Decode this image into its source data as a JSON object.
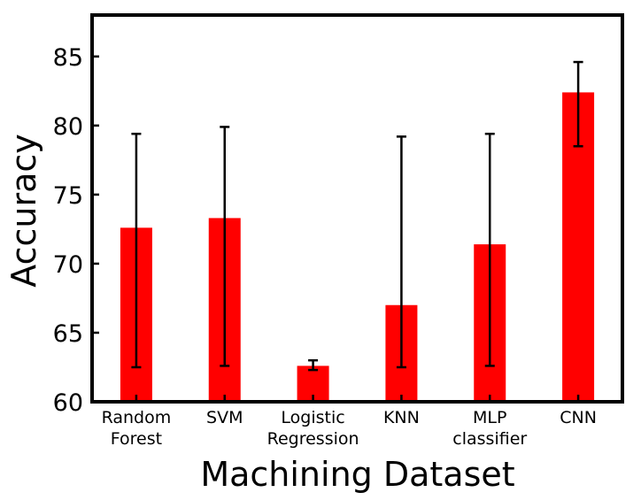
{
  "chart_data": {
    "type": "bar",
    "title": "",
    "xlabel": "Machining Dataset",
    "ylabel": "Accuracy",
    "categories": [
      [
        "Random",
        "Forest"
      ],
      [
        "SVM"
      ],
      [
        "Logistic",
        "Regression"
      ],
      [
        "KNN"
      ],
      [
        "MLP",
        "classifier"
      ],
      [
        "CNN"
      ]
    ],
    "values": [
      72.6,
      73.3,
      62.6,
      67.0,
      71.4,
      82.4
    ],
    "error_low": [
      62.5,
      62.6,
      62.3,
      62.5,
      62.6,
      78.5
    ],
    "error_high": [
      79.4,
      79.9,
      63.0,
      79.2,
      79.4,
      84.6
    ],
    "ylim": [
      60,
      88
    ],
    "yticks": [
      60,
      65,
      70,
      75,
      80,
      85
    ],
    "grid": false,
    "legend": "none",
    "colors": {
      "bar": "#ff0000",
      "error_bar": "#000000",
      "frame": "#000000"
    }
  }
}
